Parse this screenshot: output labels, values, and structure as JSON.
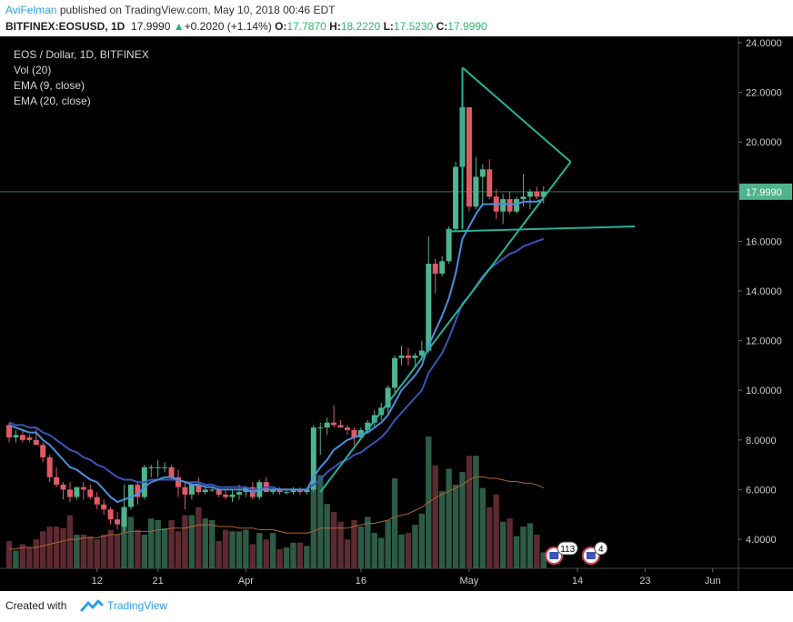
{
  "header": {
    "author": "AviFelman",
    "published_text": "published on TradingView.com, May 10, 2018 00:46 EDT",
    "symbol": "BITFINEX:EOSUSD, 1D",
    "last": "17.9990",
    "change": "+0.2020 (+1.14%)",
    "o_label": "O:",
    "o": "17.7870",
    "h_label": "H:",
    "h": "18.2220",
    "l_label": "L:",
    "l": "17.5230",
    "c_label": "C:",
    "c": "17.9990"
  },
  "legend": {
    "title": "EOS / Dollar, 1D, BITFINEX",
    "vol": "Vol (20)",
    "ema9": "EMA (9, close)",
    "ema20": "EMA (20, close)"
  },
  "colors": {
    "up": "#4fb38f",
    "down": "#e05a66",
    "ema9": "#4a8fdd",
    "ema20": "#3b54b8",
    "trend": "#26b09a",
    "vol_ma": "#b1622e",
    "price_badge": "#ffffff"
  },
  "event_badges": [
    "113",
    "4"
  ],
  "footer": {
    "created_with": "Created with",
    "brand": "TradingView"
  },
  "chart_data": {
    "type": "candlestick",
    "price_axis": {
      "ticks": [
        "24.0000",
        "22.0000",
        "20.0000",
        "18.0000",
        "16.0000",
        "14.0000",
        "12.0000",
        "10.0000",
        "8.0000",
        "6.0000",
        "4.0000"
      ],
      "range": [
        3.0,
        24.0
      ]
    },
    "time_axis": {
      "ticks": [
        "12",
        "21",
        "Apr",
        "16",
        "May",
        "14",
        "23",
        "Jun"
      ]
    },
    "last_price_label": "17.9990",
    "volume_scale_max": 8.2,
    "candles": [
      [
        8.6,
        8.7,
        7.9,
        8.1
      ],
      [
        8.1,
        8.4,
        7.9,
        8.2
      ],
      [
        8.2,
        8.4,
        7.9,
        8.0
      ],
      [
        8.1,
        8.2,
        7.9,
        8.0
      ],
      [
        8.0,
        8.5,
        7.8,
        7.8
      ],
      [
        7.8,
        7.9,
        7.1,
        7.3
      ],
      [
        7.3,
        7.4,
        6.3,
        6.5
      ],
      [
        6.5,
        6.9,
        6.1,
        6.2
      ],
      [
        6.2,
        6.3,
        5.6,
        6.0
      ],
      [
        6.0,
        6.3,
        5.5,
        5.7
      ],
      [
        5.7,
        6.1,
        5.6,
        6.1
      ],
      [
        6.1,
        6.3,
        5.6,
        6.0
      ],
      [
        6.0,
        6.2,
        5.6,
        5.7
      ],
      [
        5.7,
        5.9,
        5.2,
        5.4
      ],
      [
        5.4,
        5.6,
        5.0,
        5.2
      ],
      [
        5.2,
        5.3,
        4.6,
        4.8
      ],
      [
        4.8,
        5.1,
        4.4,
        4.6
      ],
      [
        4.5,
        6.2,
        4.3,
        5.3
      ],
      [
        5.3,
        6.2,
        5.2,
        6.2
      ],
      [
        6.2,
        6.3,
        5.4,
        5.7
      ],
      [
        5.7,
        7.0,
        5.6,
        6.9
      ],
      [
        6.9,
        7.0,
        6.5,
        6.9
      ],
      [
        6.9,
        7.2,
        6.5,
        6.9
      ],
      [
        6.9,
        7.1,
        6.7,
        6.9
      ],
      [
        6.9,
        7.0,
        6.4,
        6.5
      ],
      [
        6.5,
        6.8,
        5.7,
        6.1
      ],
      [
        6.1,
        6.3,
        5.2,
        5.8
      ],
      [
        5.8,
        6.3,
        5.6,
        6.2
      ],
      [
        6.2,
        6.5,
        5.8,
        5.9
      ],
      [
        5.9,
        6.2,
        5.8,
        6.0
      ],
      [
        6.0,
        6.1,
        5.9,
        6.0
      ],
      [
        6.0,
        6.1,
        5.7,
        5.8
      ],
      [
        5.8,
        6.0,
        5.6,
        5.7
      ],
      [
        5.7,
        6.0,
        5.5,
        5.8
      ],
      [
        5.8,
        6.2,
        5.6,
        5.9
      ],
      [
        5.9,
        6.1,
        5.7,
        6.1
      ],
      [
        6.1,
        6.3,
        5.6,
        5.7
      ],
      [
        5.7,
        6.4,
        5.6,
        6.3
      ],
      [
        6.3,
        6.5,
        5.9,
        5.9
      ],
      [
        5.9,
        6.1,
        5.8,
        6.0
      ],
      [
        6.0,
        6.1,
        5.8,
        5.9
      ],
      [
        5.9,
        6.0,
        5.8,
        5.9
      ],
      [
        5.9,
        6.1,
        5.8,
        6.0
      ],
      [
        6.0,
        6.1,
        5.8,
        5.9
      ],
      [
        5.9,
        6.0,
        5.8,
        6.0
      ],
      [
        6.0,
        8.6,
        5.9,
        8.5
      ],
      [
        8.5,
        8.7,
        7.4,
        8.5
      ],
      [
        8.5,
        8.9,
        8.2,
        8.7
      ],
      [
        8.7,
        9.4,
        8.5,
        8.6
      ],
      [
        8.6,
        8.8,
        8.5,
        8.5
      ],
      [
        8.5,
        8.6,
        8.2,
        8.4
      ],
      [
        8.4,
        8.5,
        7.8,
        8.1
      ],
      [
        8.1,
        8.5,
        8.0,
        8.4
      ],
      [
        8.4,
        8.8,
        8.3,
        8.7
      ],
      [
        8.7,
        9.2,
        8.5,
        9.0
      ],
      [
        9.0,
        9.5,
        8.8,
        9.3
      ],
      [
        9.3,
        10.2,
        9.1,
        10.1
      ],
      [
        10.1,
        11.4,
        9.8,
        11.3
      ],
      [
        11.3,
        11.8,
        11.0,
        11.4
      ],
      [
        11.4,
        11.7,
        11.0,
        11.3
      ],
      [
        11.3,
        11.5,
        10.9,
        11.4
      ],
      [
        11.4,
        12.0,
        11.2,
        11.6
      ],
      [
        11.6,
        16.2,
        11.5,
        15.1
      ],
      [
        15.1,
        15.3,
        13.9,
        14.7
      ],
      [
        14.7,
        15.4,
        14.6,
        15.2
      ],
      [
        15.2,
        16.6,
        15.1,
        16.5
      ],
      [
        16.5,
        19.2,
        16.4,
        19.0
      ],
      [
        19.0,
        21.5,
        18.1,
        21.4
      ],
      [
        21.4,
        21.4,
        17.2,
        17.4
      ],
      [
        17.4,
        19.4,
        17.3,
        18.6
      ],
      [
        18.6,
        19.1,
        17.4,
        18.9
      ],
      [
        18.9,
        19.3,
        17.7,
        17.8
      ],
      [
        17.8,
        18.1,
        16.9,
        17.2
      ],
      [
        17.2,
        17.9,
        16.7,
        17.7
      ],
      [
        17.7,
        18.0,
        17.1,
        17.2
      ],
      [
        17.2,
        17.8,
        17.1,
        17.7
      ],
      [
        17.7,
        18.7,
        17.4,
        17.8
      ],
      [
        17.8,
        18.1,
        17.3,
        18.0
      ],
      [
        18.0,
        18.2,
        17.7,
        17.8
      ],
      [
        17.787,
        18.222,
        17.523,
        17.999
      ]
    ],
    "volumes": [
      1.7,
      1.1,
      1.5,
      1.3,
      1.8,
      2.3,
      2.6,
      2.6,
      2.5,
      3.3,
      2.1,
      2.1,
      2.0,
      1.8,
      2.1,
      2.4,
      2.1,
      3.3,
      3.2,
      2.4,
      2.1,
      3.1,
      3.0,
      2.5,
      3.0,
      2.3,
      3.3,
      3.3,
      3.8,
      3.1,
      3.0,
      1.7,
      2.4,
      2.3,
      2.3,
      2.4,
      1.5,
      2.2,
      1.8,
      2.2,
      1.2,
      1.3,
      1.6,
      1.6,
      1.4,
      5.0,
      5.8,
      4.0,
      3.5,
      2.9,
      1.8,
      3.0,
      2.6,
      3.2,
      2.2,
      1.9,
      3.0,
      5.6,
      2.1,
      2.2,
      2.7,
      3.4,
      8.2,
      6.4,
      4.8,
      6.2,
      5.2,
      6.0,
      7.0,
      7.0,
      5.0,
      3.8,
      4.6,
      2.9,
      3.1,
      2.0,
      2.6,
      2.8,
      2.1,
      1.0
    ],
    "ema9": [
      8.6,
      8.5,
      8.4,
      8.3,
      8.3,
      8.0,
      7.8,
      7.5,
      7.2,
      6.9,
      6.8,
      6.6,
      6.4,
      6.3,
      6.0,
      5.7,
      5.5,
      5.6,
      5.7,
      5.8,
      6.1,
      6.3,
      6.4,
      6.5,
      6.5,
      6.4,
      6.3,
      6.2,
      6.2,
      6.1,
      6.1,
      6.0,
      6.0,
      6.0,
      6.0,
      6.0,
      5.9,
      6.0,
      6.0,
      6.0,
      6.0,
      6.0,
      6.0,
      6.0,
      6.0,
      6.5,
      6.9,
      7.2,
      7.6,
      7.8,
      8.0,
      8.1,
      8.2,
      8.3,
      8.5,
      8.7,
      9.0,
      9.5,
      10.0,
      10.3,
      10.6,
      11.0,
      11.8,
      12.4,
      13.0,
      13.7,
      14.7,
      16.1,
      16.6,
      17.1,
      17.5,
      17.5,
      17.5,
      17.5,
      17.5,
      17.5,
      17.6,
      17.6,
      17.6,
      17.7
    ],
    "ema20": [
      8.7,
      8.6,
      8.6,
      8.5,
      8.5,
      8.3,
      8.2,
      8.0,
      7.8,
      7.6,
      7.5,
      7.3,
      7.2,
      7.0,
      6.9,
      6.7,
      6.5,
      6.4,
      6.4,
      6.3,
      6.3,
      6.4,
      6.4,
      6.4,
      6.4,
      6.4,
      6.3,
      6.3,
      6.3,
      6.2,
      6.2,
      6.1,
      6.1,
      6.1,
      6.1,
      6.1,
      6.0,
      6.0,
      6.1,
      6.1,
      6.0,
      6.0,
      6.0,
      6.0,
      6.0,
      6.2,
      6.4,
      6.7,
      6.9,
      7.1,
      7.2,
      7.4,
      7.5,
      7.7,
      7.9,
      8.1,
      8.4,
      8.8,
      9.1,
      9.4,
      9.7,
      10.0,
      10.7,
      11.1,
      11.5,
      12.1,
      12.8,
      13.5,
      13.8,
      14.2,
      14.6,
      14.9,
      15.1,
      15.3,
      15.5,
      15.6,
      15.8,
      15.9,
      16.0,
      16.1
    ],
    "volume_ma": [
      1.2,
      1.2,
      1.3,
      1.3,
      1.3,
      1.4,
      1.5,
      1.6,
      1.7,
      1.8,
      1.8,
      1.9,
      1.9,
      1.9,
      2.0,
      2.1,
      2.1,
      2.2,
      2.3,
      2.3,
      2.3,
      2.3,
      2.4,
      2.4,
      2.5,
      2.5,
      2.5,
      2.6,
      2.7,
      2.7,
      2.7,
      2.6,
      2.6,
      2.6,
      2.5,
      2.5,
      2.5,
      2.4,
      2.4,
      2.4,
      2.3,
      2.2,
      2.2,
      2.2,
      2.2,
      2.3,
      2.5,
      2.5,
      2.5,
      2.5,
      2.5,
      2.6,
      2.7,
      2.8,
      2.8,
      2.9,
      3.0,
      3.2,
      3.3,
      3.4,
      3.6,
      3.8,
      4.1,
      4.4,
      4.6,
      4.8,
      5.0,
      5.2,
      5.5,
      5.7,
      5.7,
      5.6,
      5.6,
      5.5,
      5.4,
      5.4,
      5.3,
      5.3,
      5.2,
      5.0
    ]
  }
}
